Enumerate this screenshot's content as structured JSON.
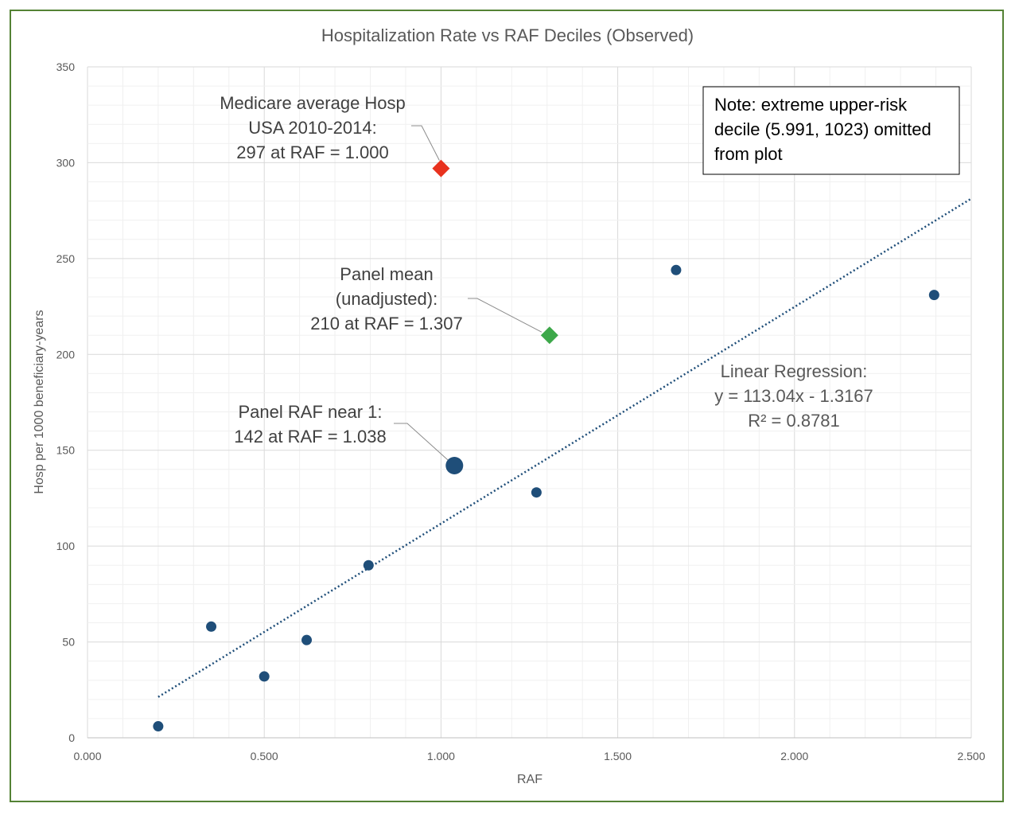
{
  "chart_data": {
    "type": "scatter",
    "title": "Hospitalization Rate vs RAF Deciles (Observed)",
    "xlabel": "RAF",
    "ylabel": "Hosp per 1000 beneficiary-years",
    "xlim": [
      0,
      2.5
    ],
    "ylim": [
      0,
      350
    ],
    "x_ticks": [
      "0.000",
      "0.500",
      "1.000",
      "1.500",
      "2.000",
      "2.500"
    ],
    "y_ticks": [
      "0",
      "50",
      "100",
      "150",
      "200",
      "250",
      "300",
      "350"
    ],
    "grid": true,
    "series": [
      {
        "color": "#1f4e79",
        "points": [
          {
            "x": 0.2,
            "y": 6
          },
          {
            "x": 0.35,
            "y": 58
          },
          {
            "x": 0.5,
            "y": 32
          },
          {
            "x": 0.62,
            "y": 51
          },
          {
            "x": 0.795,
            "y": 90
          },
          {
            "x": 1.27,
            "y": 128
          },
          {
            "x": 1.665,
            "y": 244
          },
          {
            "x": 2.395,
            "y": 231
          }
        ]
      }
    ],
    "highlight_points": {
      "panel_raf_near_1": {
        "x": 1.038,
        "y": 142,
        "color": "#1f4e79",
        "label_lines": [
          "Panel RAF near 1:",
          "142 at RAF = 1.038"
        ]
      },
      "medicare_average": {
        "x": 1.0,
        "y": 297,
        "color": "#e8321e",
        "label_lines": [
          "Medicare average Hosp",
          "USA 2010-2014:",
          "297 at RAF = 1.000"
        ]
      },
      "panel_mean": {
        "x": 1.307,
        "y": 210,
        "color": "#3da84a",
        "label_lines": [
          "Panel mean",
          "(unadjusted):",
          "210 at RAF = 1.307"
        ]
      }
    },
    "trendline": {
      "type": "linear",
      "slope": 113.04,
      "intercept": -1.3167,
      "x_range": [
        0.2,
        2.5
      ],
      "color": "#1f4e79",
      "label_lines": [
        "Linear Regression:",
        "y = 113.04x - 1.3167",
        "R² = 0.8781"
      ]
    },
    "note_lines": [
      "Note: extreme upper-risk",
      "decile (5.991, 1023) omitted",
      "from plot"
    ]
  }
}
